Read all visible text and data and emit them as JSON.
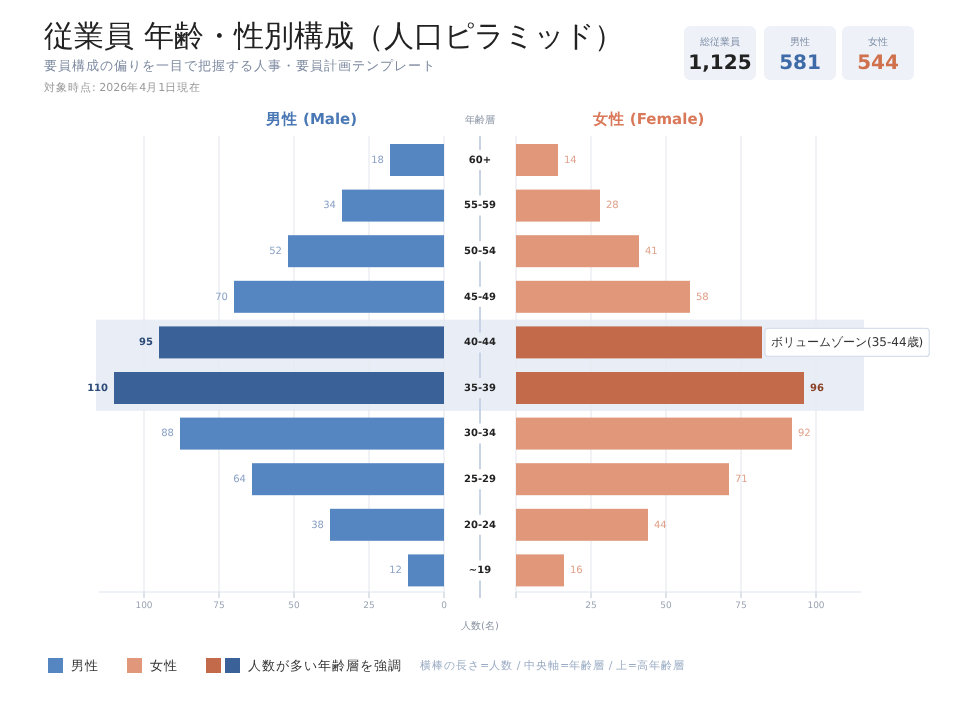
{
  "chart_data": [
    {
      "type": "other",
      "title": "従業員 年齢・性別構成（人口ピラミッド）",
      "subtitle": "要員構成の偏りを一目で把握する人事・要員計画テンプレート",
      "annotations": [
        "対象時点: 2026年4月1日現在",
        "総従業員",
        "1,125",
        "男性",
        "581",
        "女性",
        "544",
        "横棒の長さ=人数 / 中央軸=年齢層 / 上=高年齢層"
      ]
    },
    {
      "type": "bar",
      "orientation": "horizontal",
      "title": "男性 (Male)",
      "ylabel": "年齢層",
      "xlabel": "人数(名)",
      "categories": [
        "60+",
        "55-59",
        "50-54",
        "45-49",
        "40-44",
        "35-39",
        "30-34",
        "25-29",
        "20-24",
        "~19"
      ],
      "series": [
        {
          "name": "男性",
          "color": "#5586c2",
          "values": [
            18,
            34,
            52,
            70,
            null,
            null,
            88,
            64,
            38,
            12
          ],
          "value_labels": [
            "18",
            "34",
            "52",
            "70",
            null,
            null,
            "88",
            "64",
            "38",
            "12"
          ]
        },
        {
          "name": "人数が多い年齢層を強調",
          "color": "#3a6198",
          "values": [
            null,
            null,
            null,
            null,
            95,
            110,
            null,
            null,
            null,
            null
          ],
          "value_labels": [
            null,
            null,
            null,
            null,
            "95",
            "110",
            null,
            null,
            null,
            null
          ]
        }
      ],
      "xlim": [
        115,
        0
      ],
      "xticks": [
        100,
        75,
        50,
        25,
        0
      ],
      "grid": "x",
      "legend": "bottom",
      "bands": [
        {
          "axis": "y",
          "from": "40-44",
          "to": "35-39",
          "color": "#e9eef6"
        }
      ]
    },
    {
      "type": "bar",
      "orientation": "horizontal",
      "title": "女性 (Female)",
      "categories": [
        "60+",
        "55-59",
        "50-54",
        "45-49",
        "40-44",
        "35-39",
        "30-34",
        "25-29",
        "20-24",
        "~19"
      ],
      "tick_labels": "x",
      "series": [
        {
          "name": "女性",
          "color": "#e0977a",
          "values": [
            14,
            28,
            41,
            58,
            null,
            null,
            92,
            71,
            44,
            16
          ],
          "value_labels": [
            "14",
            "28",
            "41",
            "58",
            null,
            null,
            "92",
            "71",
            "44",
            "16"
          ]
        },
        {
          "color": "#c26a49",
          "values": [
            null,
            null,
            null,
            null,
            82,
            96,
            null,
            null,
            null,
            null
          ],
          "value_labels": [
            null,
            null,
            null,
            null,
            null,
            "96",
            null,
            null,
            null,
            null
          ]
        }
      ],
      "xlim": [
        0,
        115
      ],
      "xticks": [
        {
          "value": 0,
          "label": null
        },
        25,
        50,
        75,
        100
      ],
      "grid": "x",
      "legend": "bottom",
      "bands": [
        {
          "axis": "y",
          "from": "40-44",
          "to": "35-39",
          "color": "#e9eef6",
          "label": "ボリュームゾーン(35-44歳)"
        }
      ]
    }
  ]
}
